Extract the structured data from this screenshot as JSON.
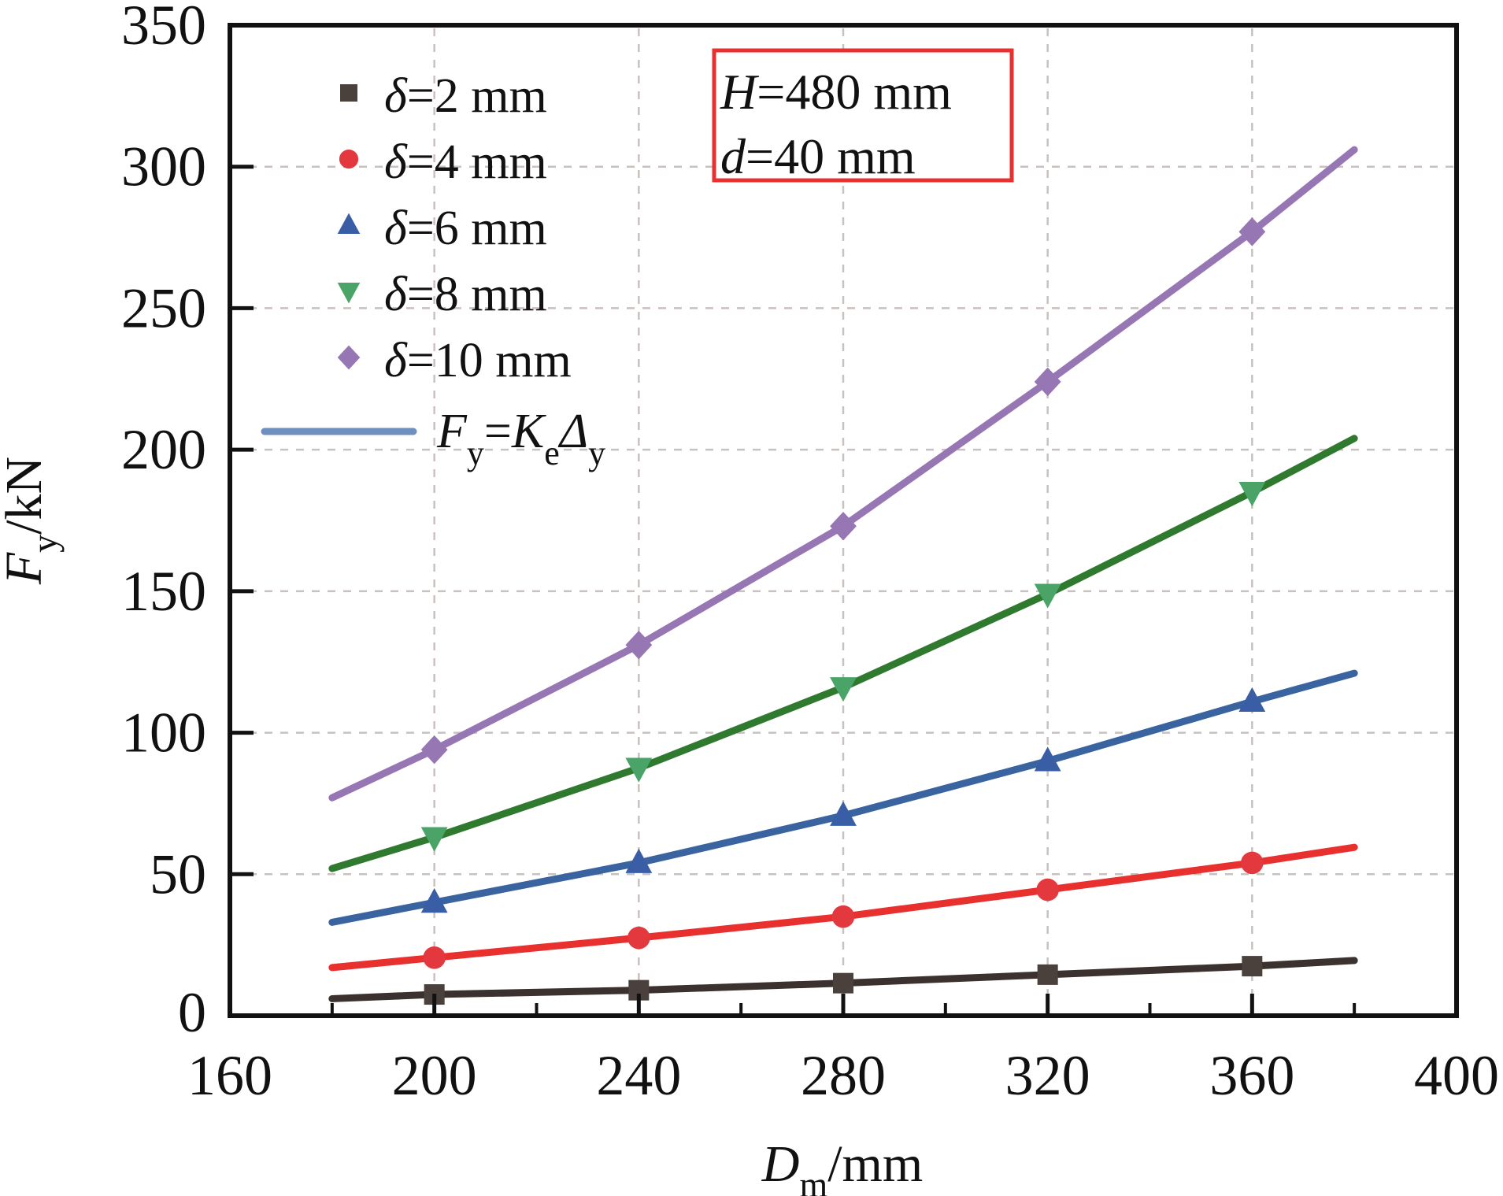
{
  "chart_data": {
    "type": "line",
    "title": "",
    "xlabel": "Dm/mm",
    "ylabel": "Fy/kN",
    "xlabel_parts": {
      "main": "D",
      "sub": "m",
      "rest": "/mm"
    },
    "ylabel_parts": {
      "main": "F",
      "sub": "y",
      "rest": "/kN"
    },
    "xlim": [
      160,
      400
    ],
    "ylim": [
      0,
      350
    ],
    "xticks": [
      160,
      200,
      240,
      280,
      320,
      360,
      400
    ],
    "yticks": [
      0,
      50,
      100,
      150,
      200,
      250,
      300,
      350
    ],
    "xtick_labels": [
      "160",
      "200",
      "240",
      "280",
      "320",
      "360",
      "400"
    ],
    "ytick_labels": [
      "0",
      "50",
      "100",
      "150",
      "200",
      "250",
      "300",
      "350"
    ],
    "grid": true,
    "legend_position": "top-left",
    "annotation": {
      "lines": [
        {
          "var": "H",
          "text": "=480 mm"
        },
        {
          "var": "d",
          "text": "=40 mm"
        }
      ],
      "border_color": "#e8312f"
    },
    "fit_legend": {
      "parts": {
        "F": "F",
        "y1": "y",
        "eq": "=",
        "K": "K",
        "e": "e",
        "D": "Δ",
        "y2": "y"
      },
      "label": "Fy=KeΔy",
      "color": "#6f8fbf"
    },
    "x": [
      200,
      240,
      280,
      320,
      360
    ],
    "series": [
      {
        "name": "δ=2 mm",
        "label_prefix": "δ",
        "label_rest": "=2 mm",
        "marker": "square",
        "marker_color": "#4a403c",
        "line_color": "#3b3230",
        "values": [
          7.5,
          9,
          11.5,
          14.5,
          17.5
        ],
        "fit": {
          "x": [
            180,
            380
          ],
          "y": [
            6,
            19.5
          ]
        }
      },
      {
        "name": "δ=4 mm",
        "label_prefix": "δ",
        "label_rest": "=4 mm",
        "marker": "circle",
        "marker_color": "#e3393e",
        "line_color": "#e8312f",
        "values": [
          20.5,
          27.5,
          35,
          44.5,
          54
        ],
        "fit": {
          "x": [
            180,
            380
          ],
          "y": [
            17,
            59.5
          ]
        }
      },
      {
        "name": "δ=6 mm",
        "label_prefix": "δ",
        "label_rest": "=6 mm",
        "marker": "triangle-up",
        "marker_color": "#3a5ea6",
        "line_color": "#3a64a0",
        "values": [
          40,
          54,
          70.7,
          90,
          111
        ],
        "fit": {
          "x": [
            180,
            380
          ],
          "y": [
            33,
            121
          ]
        }
      },
      {
        "name": "δ=8 mm",
        "label_prefix": "δ",
        "label_rest": "=8 mm",
        "marker": "triangle-down",
        "marker_color": "#4aa468",
        "line_color": "#2f7a2f",
        "values": [
          63,
          87.5,
          116,
          149,
          185
        ],
        "fit": {
          "x": [
            180,
            380
          ],
          "y": [
            52,
            204
          ]
        }
      },
      {
        "name": "δ=10 mm",
        "label_prefix": "δ",
        "label_rest": "=10 mm",
        "marker": "diamond",
        "marker_color": "#9776b4",
        "line_color": "#9776b4",
        "values": [
          94,
          131,
          173,
          224,
          277
        ],
        "fit": {
          "x": [
            180,
            380
          ],
          "y": [
            77,
            306
          ]
        }
      }
    ]
  }
}
